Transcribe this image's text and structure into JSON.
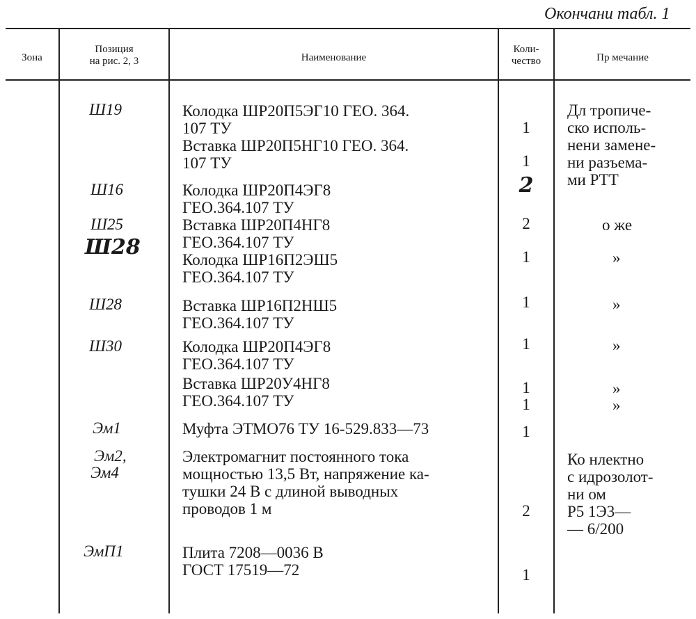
{
  "caption": "Окончани  табл. 1",
  "header": {
    "zone": "Зона",
    "position": [
      "Позиция",
      "на рис. 2, 3"
    ],
    "name": "Наименование",
    "quantity": [
      "Коли-",
      "чество"
    ],
    "note": "Пр  мечание"
  },
  "positions": [
    "Ш19",
    "Ш16",
    "Ш25",
    "Ш28",
    "Ш28",
    "Ш30",
    "Эм1",
    "Эм2,",
    "Эм4",
    "ЭмП1"
  ],
  "names": [
    "Колодка ШР20П5ЭГ10 ГЕО. 364.",
    "107 ТУ",
    "Вставка ШР20П5НГ10 ГЕО. 364.",
    "107 ТУ",
    "Колодка ШР20П4ЭГ8",
    "ГЕО.364.107 ТУ",
    "Вставка ШР20П4НГ8",
    "ГЕО.364.107 ТУ",
    "Колодка ШР16П2ЭШ5",
    "ГЕО.364.107 ТУ",
    "Вставка ШР16П2НШ5",
    "ГЕО.364.107 ТУ",
    "Колодка ШР20П4ЭГ8",
    "ГЕО.364.107 ТУ",
    "Вставка ШР20У4НГ8",
    "ГЕО.364.107 ТУ",
    "Муфта ЭТМО76 ТУ 16-529.833—73",
    "Электромагнит постоянного тока",
    "мощностью 13,5 Вт, напряжение ка-",
    "тушки 24 В с длиной выводных",
    "проводов 1 м",
    "Плита 7208—0036 В",
    "ГОСТ 17519—72"
  ],
  "quantities": [
    "1",
    "1",
    "2",
    "2",
    "1",
    "1",
    "1",
    "1",
    "1",
    "1",
    "2",
    "1"
  ],
  "notes": [
    "Дл  тропиче-",
    "ско  исполь-",
    "нени  замене-",
    "ни  разъема-",
    "ми  РТТ",
    "о же",
    "»",
    "»",
    "»",
    "»",
    "»",
    "Ко  нлектно",
    "с  идрозолот-",
    "ни  ом",
    "Р5  1Э3—",
    "—  6/200"
  ]
}
